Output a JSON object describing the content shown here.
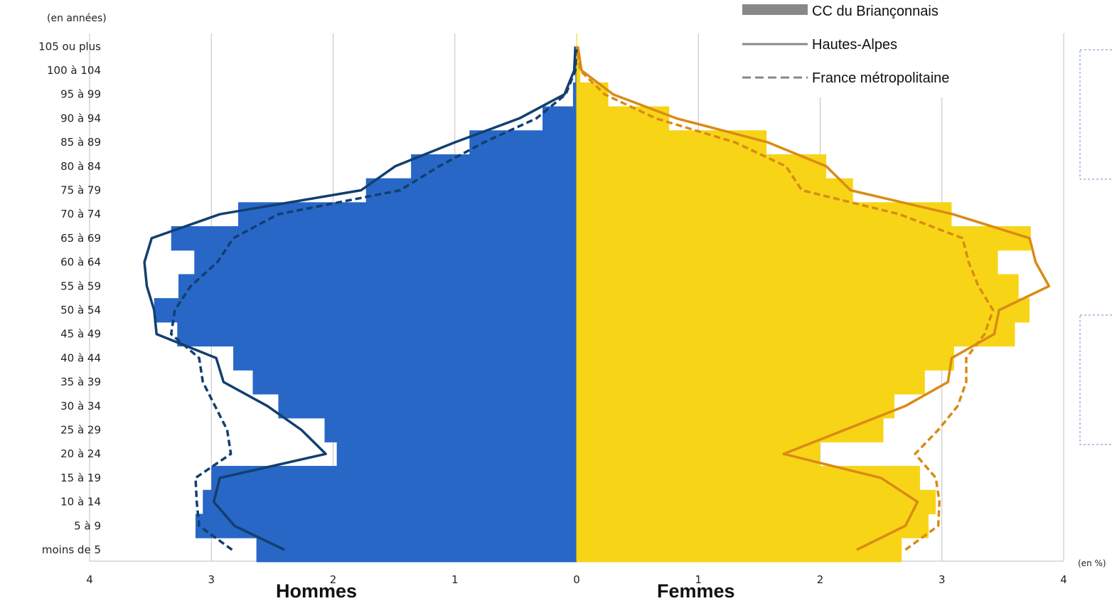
{
  "chart_data": {
    "type": "bar",
    "subtype": "population-pyramid",
    "ylabel": "(en années)",
    "xunit": "(en %)",
    "side_labels": {
      "left": "Hommes",
      "right": "Femmes"
    },
    "categories": [
      "moins de 5",
      "5 à 9",
      "10 à 14",
      "15 à 19",
      "20 à 24",
      "25 à 29",
      "30 à 34",
      "35 à 39",
      "40 à 44",
      "45 à 49",
      "50 à 54",
      "55 à 59",
      "60 à 64",
      "65 à 69",
      "70 à 74",
      "75 à 79",
      "80 à 84",
      "85 à 89",
      "90 à 94",
      "95 à 99",
      "100 à 104",
      "105 ou plus"
    ],
    "x_ticks": [
      4,
      3,
      2,
      1,
      0,
      1,
      2,
      3,
      4
    ],
    "xlim": [
      -4,
      4
    ],
    "legend": {
      "placement": "top-right",
      "entries": [
        "CC du Briançonnais",
        "Hautes-Alpes",
        "France métropolitaine"
      ]
    },
    "colors": {
      "men_bar": "#2867c6",
      "women_bar": "#f8d417",
      "men_line": "#123f70",
      "women_line": "#d98b15",
      "legend_gray": "#888888",
      "grid": "#bfbfbf"
    },
    "series": [
      {
        "name": "CC du Briançonnais",
        "sex": "Hommes",
        "kind": "bar",
        "values": [
          2.63,
          3.13,
          3.07,
          3.0,
          1.97,
          2.07,
          2.45,
          2.66,
          2.82,
          3.28,
          3.47,
          3.27,
          3.14,
          3.33,
          2.78,
          1.73,
          1.36,
          0.88,
          0.28,
          0.03,
          0.01,
          0.0
        ]
      },
      {
        "name": "CC du Briançonnais",
        "sex": "Femmes",
        "kind": "bar",
        "values": [
          2.67,
          2.89,
          2.95,
          2.82,
          2.0,
          2.52,
          2.61,
          2.86,
          3.1,
          3.6,
          3.72,
          3.63,
          3.46,
          3.73,
          3.08,
          2.27,
          2.05,
          1.56,
          0.76,
          0.26,
          0.03,
          0.0
        ]
      },
      {
        "name": "Hautes-Alpes",
        "sex": "Hommes",
        "kind": "line",
        "values": [
          2.4,
          2.81,
          2.98,
          2.93,
          2.06,
          2.26,
          2.54,
          2.9,
          2.96,
          3.45,
          3.47,
          3.53,
          3.55,
          3.49,
          2.93,
          1.77,
          1.49,
          1.0,
          0.47,
          0.1,
          0.02,
          0.01
        ]
      },
      {
        "name": "Hautes-Alpes",
        "sex": "Femmes",
        "kind": "line",
        "values": [
          2.3,
          2.7,
          2.8,
          2.5,
          1.7,
          2.2,
          2.7,
          3.05,
          3.08,
          3.43,
          3.47,
          3.88,
          3.77,
          3.72,
          3.09,
          2.25,
          2.05,
          1.57,
          0.82,
          0.3,
          0.04,
          0.01
        ]
      },
      {
        "name": "France métropolitaine",
        "sex": "Hommes",
        "kind": "dashed-line",
        "values": [
          2.83,
          3.1,
          3.12,
          3.13,
          2.84,
          2.87,
          2.97,
          3.07,
          3.1,
          3.33,
          3.3,
          3.17,
          2.95,
          2.82,
          2.45,
          1.45,
          1.13,
          0.76,
          0.33,
          0.09,
          0.01,
          0.0
        ]
      },
      {
        "name": "France métropolitaine",
        "sex": "Femmes",
        "kind": "dashed-line",
        "values": [
          2.7,
          2.97,
          2.98,
          2.95,
          2.78,
          2.97,
          3.13,
          3.2,
          3.2,
          3.35,
          3.42,
          3.3,
          3.22,
          3.17,
          2.65,
          1.85,
          1.72,
          1.3,
          0.65,
          0.23,
          0.03,
          0.0
        ]
      }
    ]
  }
}
